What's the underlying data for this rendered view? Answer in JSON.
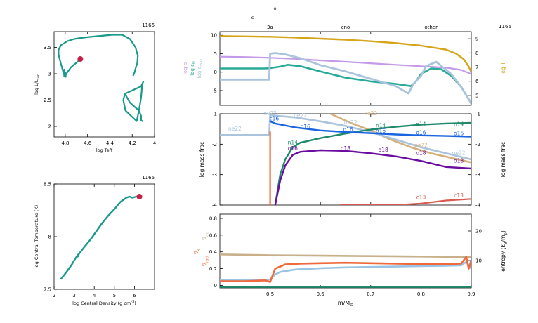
{
  "colors": {
    "teal": "#1a9a8c",
    "track": "#15877c",
    "marker": "#c81e4a",
    "gold": "#d4a419",
    "lilac": "#c49ae8",
    "teal2": "#2aaa98",
    "ice": "#a9c4dc",
    "blue": "#1a64e0",
    "purple": "#6a0da0",
    "orange": "#f26a35",
    "tan": "#d6b07c",
    "salmon": "#d85a50",
    "green": "#1f8a6a",
    "coral": "#ee6a3c",
    "khaki": "#c8b08a",
    "skyblue": "#9ac4e4",
    "gray": "#777777"
  },
  "chart_data": [
    {
      "id": "hr",
      "type": "line",
      "model": "1166",
      "xlabel": "log Teff",
      "ylabel": "log L/L",
      "ylabel_sub": "sun",
      "xlim": [
        4.9,
        4.0
      ],
      "ylim": [
        1.8,
        3.8
      ],
      "xticks": [
        {
          "v": 4.8,
          "t": "4.8"
        },
        {
          "v": 4.6,
          "t": "4.6"
        },
        {
          "v": 4.4,
          "t": "4.4"
        },
        {
          "v": 4.2,
          "t": "4.2"
        },
        {
          "v": 4.0,
          "t": "4"
        }
      ],
      "yticks": [
        {
          "v": 2,
          "t": "2"
        },
        {
          "v": 2.5,
          "t": "2.5"
        },
        {
          "v": 3,
          "t": "3"
        },
        {
          "v": 3.5,
          "t": "3.5"
        }
      ],
      "series": [
        {
          "color": "teal",
          "width": 2.2,
          "x": [
            4.66,
            4.75,
            4.79,
            4.795,
            4.8,
            4.82,
            4.84,
            4.86,
            4.86,
            4.84,
            4.78,
            4.72,
            4.66,
            4.58,
            4.48,
            4.38,
            4.29,
            4.22,
            4.17,
            4.15,
            4.155,
            4.17,
            4.18,
            4.19
          ],
          "y": [
            3.28,
            3.12,
            3.0,
            2.98,
            2.94,
            3.05,
            3.2,
            3.36,
            3.45,
            3.54,
            3.62,
            3.66,
            3.68,
            3.7,
            3.72,
            3.74,
            3.74,
            3.66,
            3.5,
            3.34,
            3.2,
            3.1,
            3.02,
            2.97
          ]
        },
        {
          "color": "teal",
          "width": 2.2,
          "x": [
            4.81,
            4.81,
            4.795,
            4.8
          ],
          "y": [
            3.08,
            2.96,
            2.94,
            3.02
          ]
        },
        {
          "color": "teal",
          "width": 2.2,
          "x": [
            4.265,
            4.12,
            4.1,
            4.11,
            4.12,
            4.14,
            4.16,
            4.26,
            4.28,
            4.265,
            4.22,
            4.14,
            4.12,
            4.12,
            4.11
          ],
          "y": [
            2.62,
            2.76,
            2.85,
            2.8,
            2.55,
            2.3,
            2.1,
            2.3,
            2.5,
            2.62,
            2.45,
            2.3,
            2.2,
            2.12,
            2.1
          ]
        }
      ],
      "points": [
        {
          "x": 4.665,
          "y": 3.28,
          "color": "marker",
          "r": 4
        }
      ]
    },
    {
      "id": "core",
      "type": "line",
      "model": "1166",
      "xlabel": "log Central Density (g cm",
      "xlabel_sup": "-3",
      "ylabel": "log Central Temperature (K)",
      "xlim": [
        2.0,
        7.0
      ],
      "ylim": [
        7.5,
        8.5
      ],
      "xticks": [
        {
          "v": 2,
          "t": "2"
        },
        {
          "v": 3,
          "t": "3"
        },
        {
          "v": 4,
          "t": "4"
        },
        {
          "v": 5,
          "t": "5"
        },
        {
          "v": 6,
          "t": "6"
        }
      ],
      "yticks": [
        {
          "v": 7.5,
          "t": "7.5"
        },
        {
          "v": 8,
          "t": "8"
        },
        {
          "v": 8.5,
          "t": "8.5"
        }
      ],
      "series": [
        {
          "color": "teal",
          "width": 2.4,
          "x": [
            2.35,
            2.6,
            2.9,
            3.05,
            3.2,
            3.18,
            3.25,
            3.5,
            3.8,
            4.1,
            4.4,
            4.7,
            5.0,
            5.3,
            5.6,
            5.75,
            5.9,
            6.1,
            6.25
          ],
          "y": [
            7.6,
            7.66,
            7.74,
            7.79,
            7.83,
            7.81,
            7.84,
            7.9,
            7.97,
            8.05,
            8.13,
            8.2,
            8.26,
            8.33,
            8.37,
            8.38,
            8.37,
            8.38,
            8.38
          ]
        }
      ],
      "points": [
        {
          "x": 6.25,
          "y": 8.38,
          "color": "marker",
          "r": 4
        }
      ]
    },
    {
      "id": "profile-top",
      "type": "line",
      "model": "1166",
      "xlim": [
        0.4,
        0.9
      ],
      "ylim": [
        -9,
        11
      ],
      "ylim_right": [
        4.5,
        6.5
      ],
      "yticks": [
        {
          "v": -5,
          "t": "-5"
        },
        {
          "v": 0,
          "t": "0"
        },
        {
          "v": 5,
          "t": "5"
        },
        {
          "v": 10,
          "t": "10"
        }
      ],
      "yticks_right": [
        {
          "v": 5,
          "t": "5"
        },
        {
          "v": 6,
          "t": "6"
        },
        {
          "v": 7,
          "t": "7"
        },
        {
          "v": 8,
          "t": "8"
        },
        {
          "v": 9,
          "t": "9"
        }
      ],
      "left_labels": [
        {
          "t": "log ρ",
          "color": "lilac"
        },
        {
          "t": "log ε",
          "sub": "N",
          "color": "teal2"
        },
        {
          "t": "log ε",
          "sub": "max",
          "color": "ice"
        }
      ],
      "right_label": {
        "t": "log T",
        "color": "gold"
      },
      "top_labels": [
        {
          "t": "3α",
          "x": 0.5
        },
        {
          "t": "cno",
          "x": 0.65
        },
        {
          "t": "other",
          "x": 0.82
        }
      ],
      "top_symbols": [
        {
          "t": "c",
          "x": 0.5
        },
        {
          "t": "o",
          "x": 0.525
        }
      ],
      "series": [
        {
          "color": "gold",
          "width": 2.4,
          "x": [
            0.4,
            0.45,
            0.5,
            0.55,
            0.6,
            0.65,
            0.7,
            0.75,
            0.8,
            0.85,
            0.87,
            0.885,
            0.895,
            0.9
          ],
          "y": [
            9.8,
            9.7,
            9.6,
            9.4,
            9.1,
            8.8,
            8.4,
            7.9,
            7.2,
            6.1,
            5.0,
            3.5,
            1.5,
            0.0
          ]
        },
        {
          "color": "lilac",
          "width": 2.2,
          "x": [
            0.4,
            0.45,
            0.5,
            0.55,
            0.6,
            0.65,
            0.7,
            0.75,
            0.8,
            0.85,
            0.88,
            0.9
          ],
          "y": [
            4.2,
            4.1,
            3.9,
            3.6,
            3.2,
            2.8,
            2.4,
            2.0,
            1.6,
            1.2,
            0.6,
            -0.5
          ]
        },
        {
          "color": "teal2",
          "width": 2.6,
          "x": [
            0.4,
            0.45,
            0.49,
            0.5,
            0.52,
            0.535,
            0.56,
            0.6,
            0.65,
            0.7,
            0.75,
            0.78,
            0.79,
            0.8,
            0.82,
            0.84,
            0.86,
            0.88,
            0.9
          ],
          "y": [
            1.0,
            1.0,
            1.0,
            1.1,
            1.5,
            2.0,
            1.6,
            0.2,
            -1.5,
            -2.5,
            -3.2,
            -3.8,
            -2.5,
            -0.5,
            1.0,
            0.8,
            -1.0,
            -4.0,
            -8.5
          ]
        },
        {
          "color": "ice",
          "width": 2.8,
          "x": [
            0.4,
            0.45,
            0.498,
            0.5,
            0.51,
            0.53,
            0.56,
            0.6,
            0.65,
            0.7,
            0.75,
            0.775,
            0.785,
            0.8,
            0.81,
            0.83,
            0.86,
            0.88,
            0.9
          ],
          "y": [
            -2.0,
            -2.0,
            -2.0,
            5.0,
            5.2,
            4.8,
            3.8,
            1.9,
            0.2,
            -1.8,
            -3.8,
            -5.8,
            -3.2,
            -1.0,
            1.6,
            2.8,
            -0.5,
            -4.0,
            -8.5
          ]
        }
      ]
    },
    {
      "id": "profile-mid",
      "type": "line",
      "xlim": [
        0.4,
        0.9
      ],
      "ylim": [
        -4,
        -1
      ],
      "ylabel": "log mass frac",
      "ylabel_right": "log mass frac",
      "yticks": [
        {
          "v": -4,
          "t": "-4"
        },
        {
          "v": -3,
          "t": "-3"
        },
        {
          "v": -2,
          "t": "-2"
        },
        {
          "v": -1,
          "t": "-1"
        }
      ],
      "yticks_right": [
        {
          "v": -4,
          "t": "-4"
        },
        {
          "v": -3,
          "t": "-3"
        },
        {
          "v": -2,
          "t": "-2"
        },
        {
          "v": -1,
          "t": "-1"
        }
      ],
      "series": [
        {
          "color": "tan",
          "width": 2.6,
          "x": [
            0.62,
            0.66,
            0.7,
            0.74,
            0.78,
            0.82,
            0.86,
            0.9
          ],
          "y": [
            -1.0,
            -1.3,
            -1.55,
            -1.85,
            -2.1,
            -2.3,
            -2.45,
            -2.6
          ]
        },
        {
          "color": "ice",
          "width": 2.6,
          "x": [
            0.4,
            0.45,
            0.498,
            0.5,
            0.502,
            0.55,
            0.6,
            0.65,
            0.7,
            0.75,
            0.8,
            0.85,
            0.9
          ],
          "y": [
            -1.7,
            -1.7,
            -1.7,
            -1.05,
            -1.05,
            -1.12,
            -1.25,
            -1.4,
            -1.6,
            -1.85,
            -2.1,
            -2.3,
            -2.5
          ]
        },
        {
          "color": "green",
          "width": 2.4,
          "x": [
            0.51,
            0.515,
            0.52,
            0.53,
            0.545,
            0.56,
            0.6,
            0.65,
            0.7,
            0.75,
            0.8,
            0.85,
            0.9
          ],
          "y": [
            -4.0,
            -3.5,
            -3.0,
            -2.5,
            -2.1,
            -1.95,
            -1.8,
            -1.65,
            -1.52,
            -1.43,
            -1.36,
            -1.32,
            -1.3
          ]
        },
        {
          "color": "blue",
          "width": 2.4,
          "x": [
            0.5,
            0.51,
            0.55,
            0.6,
            0.65,
            0.7,
            0.75,
            0.8,
            0.85,
            0.9
          ],
          "y": [
            -1.25,
            -1.32,
            -1.45,
            -1.55,
            -1.6,
            -1.64,
            -1.68,
            -1.71,
            -1.73,
            -1.75
          ]
        },
        {
          "color": "purple",
          "width": 2.4,
          "x": [
            0.51,
            0.52,
            0.53,
            0.545,
            0.56,
            0.6,
            0.65,
            0.7,
            0.75,
            0.8,
            0.85,
            0.9
          ],
          "y": [
            -4.0,
            -3.2,
            -2.7,
            -2.35,
            -2.25,
            -2.2,
            -2.22,
            -2.3,
            -2.4,
            -2.55,
            -2.75,
            -2.8
          ]
        },
        {
          "color": "orange",
          "width": 2.2,
          "x": [
            0.498,
            0.5,
            0.5,
            0.5
          ],
          "y": [
            -4.0,
            -4.0,
            -2.0,
            -1.6
          ]
        },
        {
          "color": "salmon",
          "width": 2.2,
          "x": [
            0.64,
            0.7,
            0.75,
            0.8,
            0.85,
            0.9
          ],
          "y": [
            -4.0,
            -4.0,
            -4.0,
            -3.95,
            -3.85,
            -3.8
          ]
        }
      ],
      "labels": [
        {
          "t": "ne22",
          "x": 0.5,
          "y": -1.05,
          "color": "ice"
        },
        {
          "t": "ne22",
          "x": 0.43,
          "y": -1.55,
          "color": "ice"
        },
        {
          "t": "c16",
          "x": 0.508,
          "y": -1.22,
          "color": "blue"
        },
        {
          "t": "ne22",
          "x": 0.56,
          "y": -1.12,
          "color": "ice"
        },
        {
          "t": "o16",
          "x": 0.57,
          "y": -1.48,
          "color": "blue"
        },
        {
          "t": "o16",
          "x": 0.655,
          "y": -1.58,
          "color": "blue"
        },
        {
          "t": "ne22",
          "x": 0.66,
          "y": -1.35,
          "color": "ice"
        },
        {
          "t": "n14",
          "x": 0.72,
          "y": -1.45,
          "color": "green"
        },
        {
          "t": "o16",
          "x": 0.72,
          "y": -1.62,
          "color": "blue"
        },
        {
          "t": "n14",
          "x": 0.8,
          "y": -1.4,
          "color": "green"
        },
        {
          "t": "o16",
          "x": 0.8,
          "y": -1.68,
          "color": "blue"
        },
        {
          "t": "n14",
          "x": 0.875,
          "y": -1.4,
          "color": "green"
        },
        {
          "t": "o16",
          "x": 0.875,
          "y": -1.7,
          "color": "blue"
        },
        {
          "t": "ne22",
          "x": 0.7,
          "y": -1.05,
          "color": "tan"
        },
        {
          "t": "n14",
          "x": 0.545,
          "y": -2.0,
          "color": "green"
        },
        {
          "t": "o16",
          "x": 0.545,
          "y": -2.2,
          "color": "purple"
        },
        {
          "t": "o18",
          "x": 0.65,
          "y": -2.2,
          "color": "purple"
        },
        {
          "t": "o18",
          "x": 0.725,
          "y": -2.25,
          "color": "purple"
        },
        {
          "t": "o18",
          "x": 0.8,
          "y": -2.35,
          "color": "purple"
        },
        {
          "t": "ne22",
          "x": 0.8,
          "y": -2.1,
          "color": "tan"
        },
        {
          "t": "ne22",
          "x": 0.875,
          "y": -2.35,
          "color": "ice"
        },
        {
          "t": "o18",
          "x": 0.875,
          "y": -2.6,
          "color": "purple"
        },
        {
          "t": "c13",
          "x": 0.8,
          "y": -3.8,
          "color": "salmon"
        },
        {
          "t": "c13",
          "x": 0.875,
          "y": -3.75,
          "color": "salmon"
        }
      ]
    },
    {
      "id": "profile-bottom",
      "type": "line",
      "xlim": [
        0.4,
        0.9
      ],
      "ylim": [
        -0.03,
        0.85
      ],
      "ylim_right": [
        0,
        25
      ],
      "xlabel": "m/M",
      "xlabel_sub": "⊙",
      "xticks": [
        {
          "v": 0.5,
          "t": "0.5"
        },
        {
          "v": 0.6,
          "t": "0.6"
        },
        {
          "v": 0.7,
          "t": "0.7"
        },
        {
          "v": 0.8,
          "t": "0.8"
        },
        {
          "v": 0.9,
          "t": "0.9"
        }
      ],
      "yticks": [
        {
          "v": 0,
          "t": "0"
        },
        {
          "v": 0.2,
          "t": "0.2"
        },
        {
          "v": 0.4,
          "t": "0.4"
        },
        {
          "v": 0.6,
          "t": "0.6"
        },
        {
          "v": 0.8,
          "t": "0.8"
        }
      ],
      "yticks_right": [
        {
          "v": 10,
          "t": "10"
        },
        {
          "v": 20,
          "t": "20"
        }
      ],
      "left_labels": [
        {
          "t": "∇",
          "sub": "ad",
          "color": "khaki"
        },
        {
          "t": "∇",
          "sub": "e",
          "color": "orange"
        },
        {
          "t": "∇",
          "sub": "rad",
          "color": "coral"
        }
      ],
      "right_label": {
        "t": "entropy (k",
        "sub1": "B",
        "mid": "/m",
        "sub2": "p",
        "end": ")"
      },
      "series": [
        {
          "color": "green",
          "width": 2.2,
          "x": [
            0.4,
            0.9
          ],
          "y": [
            -0.02,
            -0.02
          ]
        },
        {
          "color": "khaki",
          "width": 2.6,
          "x": [
            0.4,
            0.5,
            0.6,
            0.7,
            0.8,
            0.88,
            0.9
          ],
          "y": [
            0.37,
            0.36,
            0.355,
            0.35,
            0.345,
            0.34,
            0.34
          ]
        },
        {
          "color": "skyblue",
          "width": 2.6,
          "x": [
            0.4,
            0.49,
            0.5,
            0.51,
            0.52,
            0.55,
            0.6,
            0.65,
            0.7,
            0.75,
            0.8,
            0.85,
            0.88,
            0.89,
            0.9
          ],
          "y": [
            0.06,
            0.06,
            0.07,
            0.13,
            0.16,
            0.19,
            0.205,
            0.215,
            0.22,
            0.225,
            0.23,
            0.235,
            0.24,
            0.28,
            0.2
          ]
        },
        {
          "color": "coral",
          "width": 2.6,
          "x": [
            0.4,
            0.45,
            0.49,
            0.5,
            0.51,
            0.53,
            0.56,
            0.6,
            0.65,
            0.7,
            0.75,
            0.8,
            0.85,
            0.88,
            0.89,
            0.895,
            0.9
          ],
          "y": [
            0.05,
            0.05,
            0.06,
            0.04,
            0.2,
            0.25,
            0.26,
            0.265,
            0.27,
            0.265,
            0.26,
            0.255,
            0.255,
            0.26,
            0.34,
            0.2,
            0.3
          ]
        }
      ]
    }
  ]
}
